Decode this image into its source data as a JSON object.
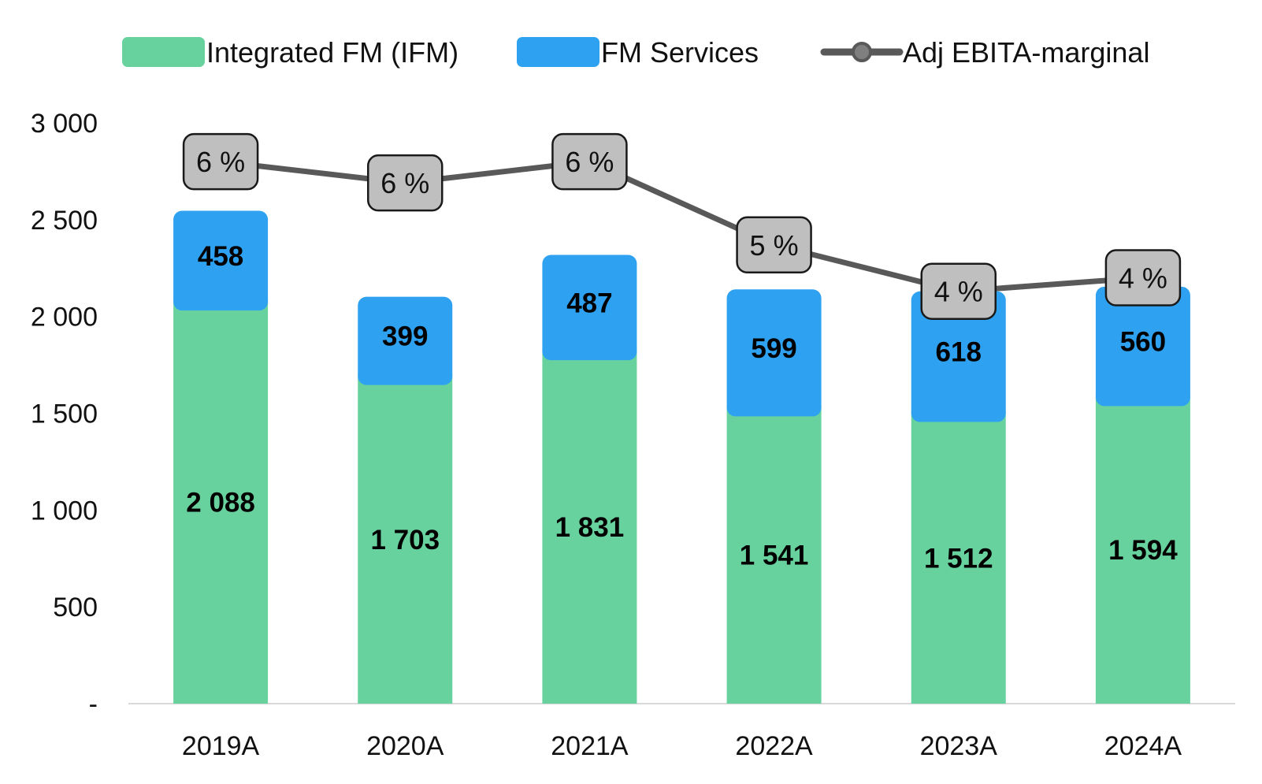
{
  "chart_data": {
    "type": "bar",
    "stacked": true,
    "categories": [
      "2019A",
      "2020A",
      "2021A",
      "2022A",
      "2023A",
      "2024A"
    ],
    "series": [
      {
        "name": "Integrated FM (IFM)",
        "color": "#68D29F",
        "values": [
          2088,
          1703,
          1831,
          1541,
          1512,
          1594
        ],
        "labels": [
          "2 088",
          "1 703",
          "1 831",
          "1 541",
          "1 512",
          "1 594"
        ]
      },
      {
        "name": "FM Services",
        "color": "#2EA2F0",
        "values": [
          458,
          399,
          487,
          599,
          618,
          560
        ],
        "labels": [
          "458",
          "399",
          "487",
          "599",
          "618",
          "560"
        ]
      }
    ],
    "line_series": {
      "name": "Adj EBITA-marginal",
      "color": "#595959",
      "label_box_color": "#BFBFBF",
      "labels": [
        "6 %",
        "6 %",
        "6 %",
        "5 %",
        "4 %",
        "4 %"
      ],
      "positions": [
        2800,
        2690,
        2800,
        2370,
        2130,
        2200
      ]
    },
    "y_axis": {
      "min": 0,
      "max": 3000,
      "ticks": [
        0,
        500,
        1000,
        1500,
        2000,
        2500,
        3000
      ],
      "tick_labels": [
        "-",
        "500",
        "1 000",
        "1 500",
        "2 000",
        "2 500",
        "3 000"
      ]
    },
    "legend": {
      "position": "top"
    },
    "grid": false,
    "title": "",
    "xlabel": "",
    "ylabel": ""
  }
}
